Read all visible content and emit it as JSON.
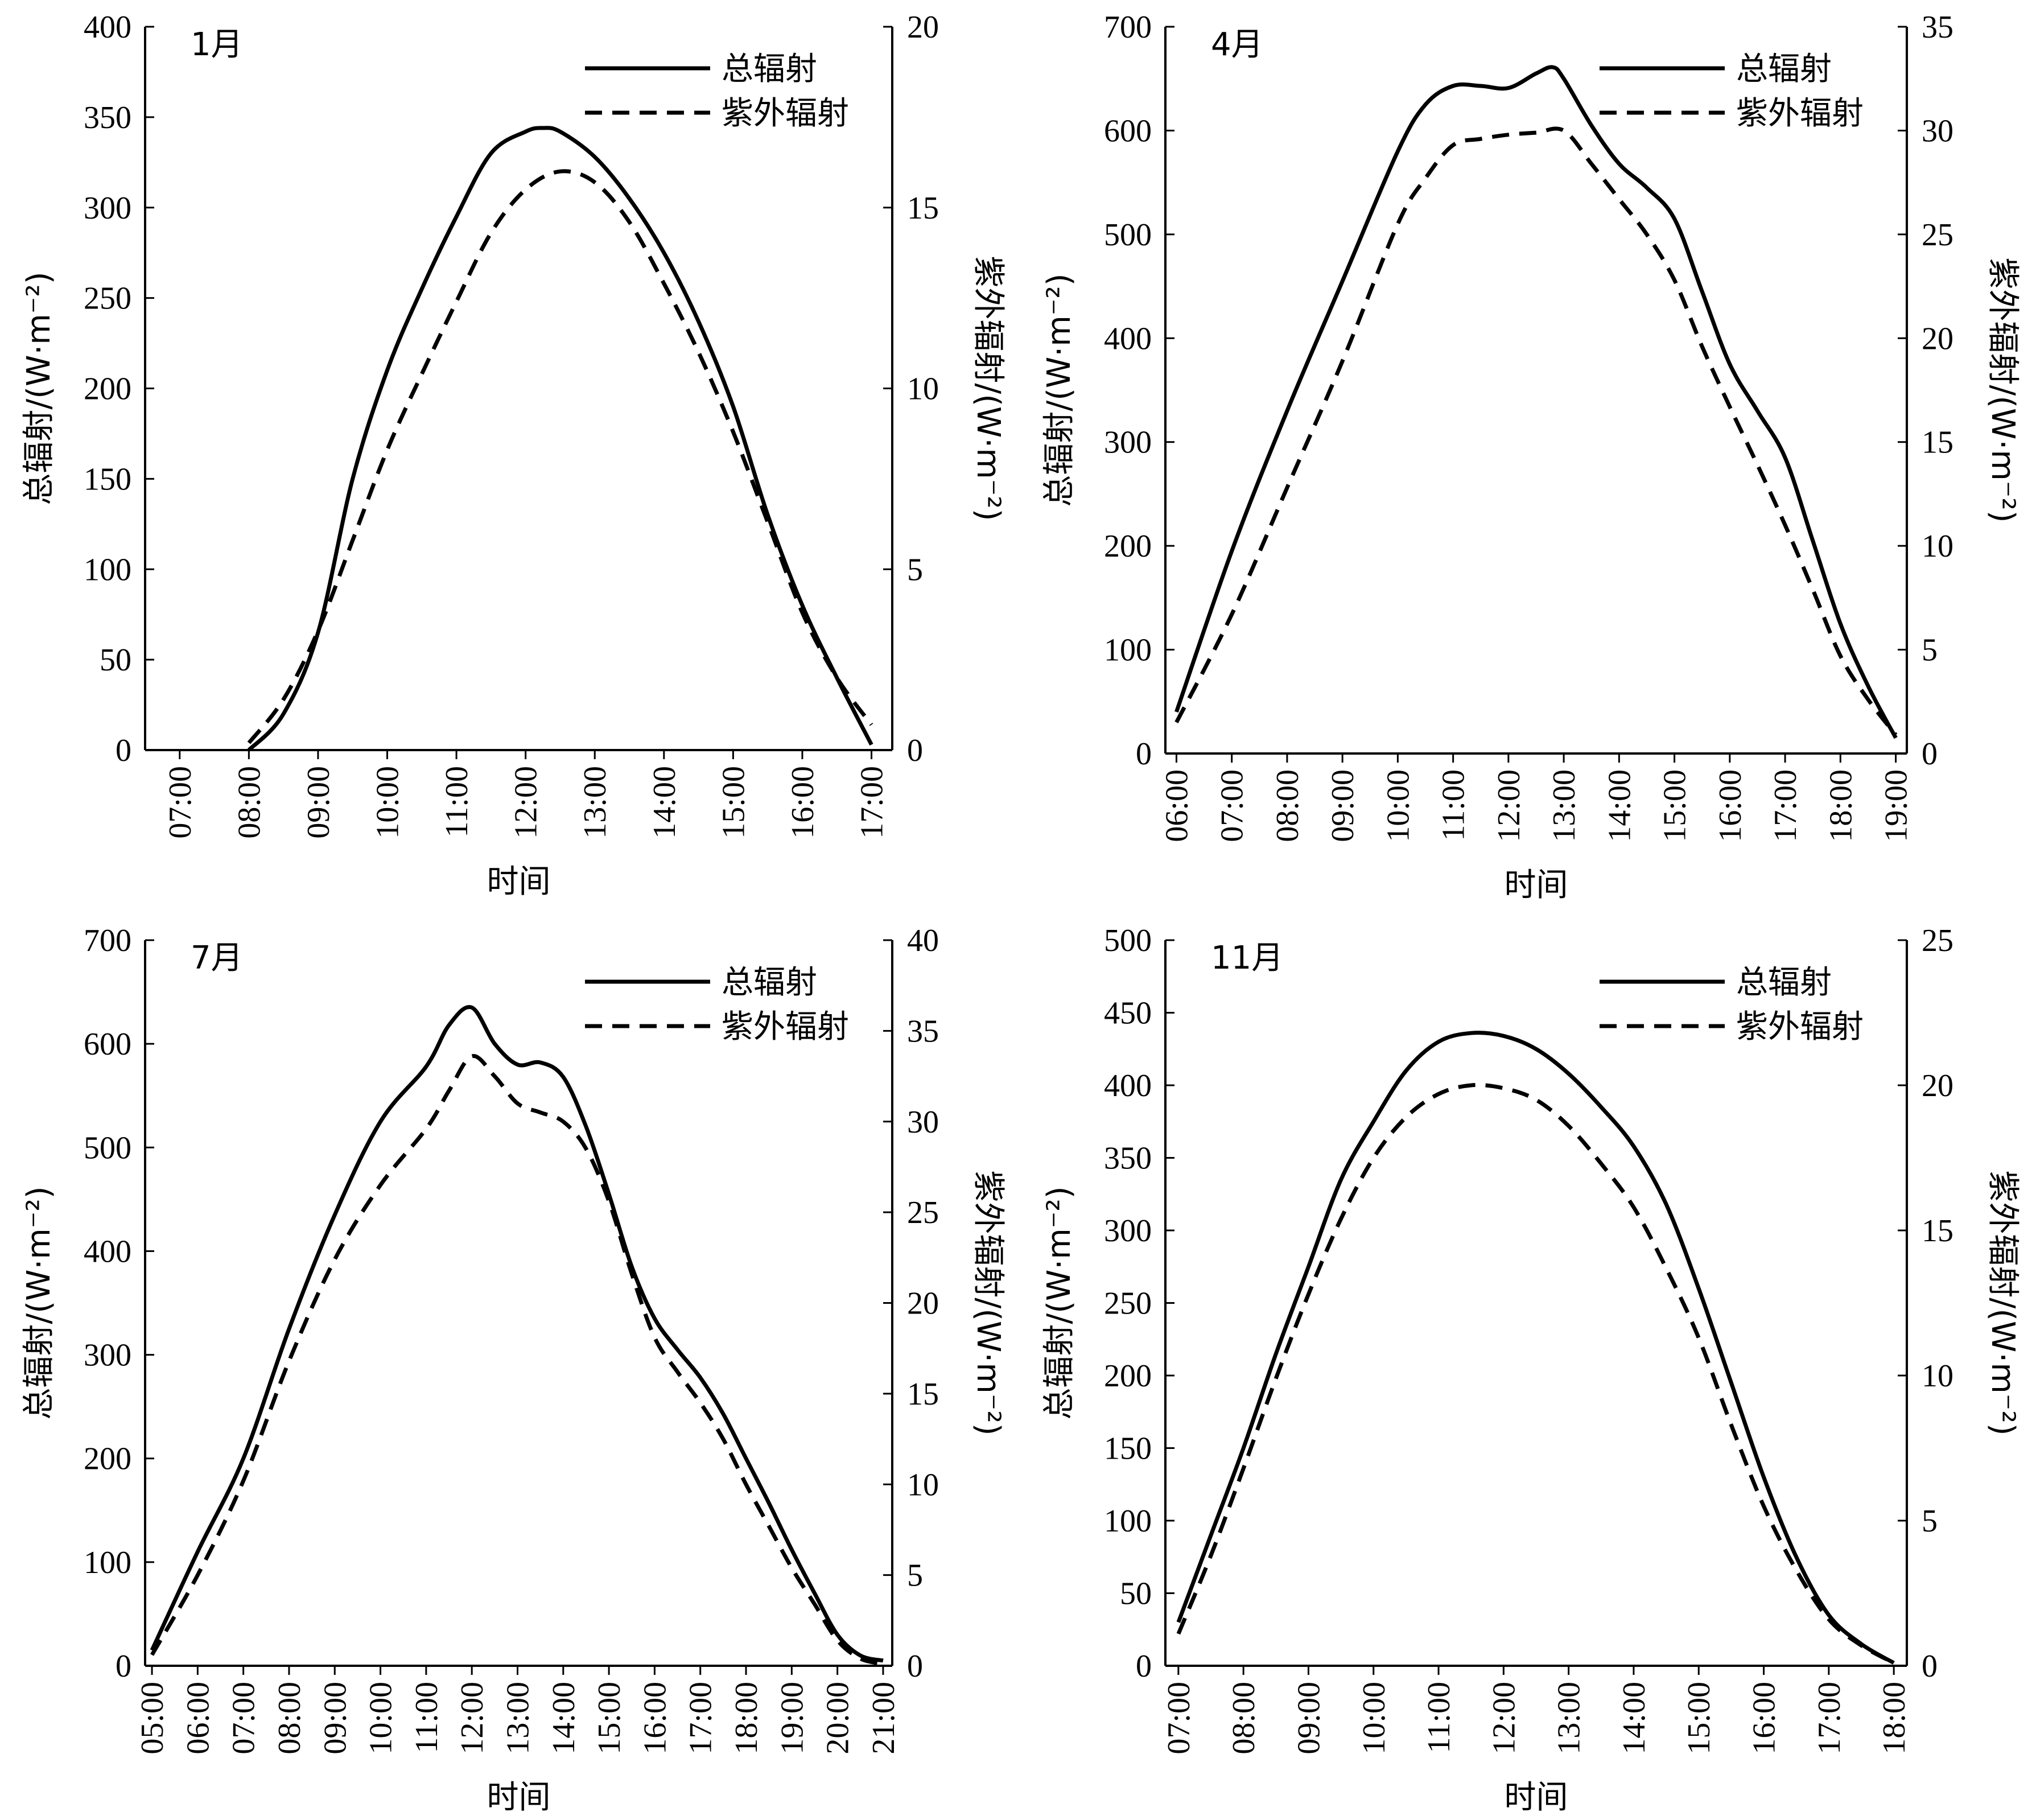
{
  "chart_data": [
    {
      "type": "line",
      "title": "1月",
      "xlabel": "时间",
      "ylabel_left": "总辐射/(W·m⁻²)",
      "ylabel_right": "紫外辐射/(W·m⁻²)",
      "categories": [
        "07:00",
        "08:00",
        "09:00",
        "10:00",
        "11:00",
        "12:00",
        "13:00",
        "14:00",
        "15:00",
        "16:00",
        "17:00"
      ],
      "ylim_left": [
        0,
        400
      ],
      "yticks_left": [
        0,
        50,
        100,
        150,
        200,
        250,
        300,
        350,
        400
      ],
      "ylim_right": [
        0,
        20
      ],
      "yticks_right": [
        0,
        5,
        10,
        15,
        20
      ],
      "legend_position": "top-right",
      "series": [
        {
          "name": "总辐射",
          "axis": "left",
          "style": "solid",
          "x": [
            8.0,
            8.5,
            9.0,
            9.5,
            10.0,
            10.5,
            11.0,
            11.5,
            12.0,
            12.25,
            12.5,
            13.0,
            13.5,
            14.0,
            14.5,
            15.0,
            15.5,
            16.0,
            16.5,
            17.0
          ],
          "y": [
            0,
            20,
            65,
            150,
            210,
            255,
            295,
            330,
            342,
            344,
            342,
            328,
            305,
            275,
            237,
            190,
            130,
            80,
            40,
            3
          ]
        },
        {
          "name": "紫外辐射",
          "axis": "right",
          "style": "dashed",
          "x": [
            8.0,
            8.5,
            9.0,
            9.5,
            10.0,
            10.5,
            11.0,
            11.5,
            12.0,
            12.5,
            13.0,
            13.5,
            14.0,
            14.5,
            15.0,
            15.5,
            16.0,
            16.5,
            17.0
          ],
          "y": [
            0.2,
            1.4,
            3.3,
            5.8,
            8.3,
            10.4,
            12.4,
            14.3,
            15.5,
            16.0,
            15.7,
            14.6,
            12.9,
            11.0,
            8.8,
            6.3,
            3.8,
            2.0,
            0.7
          ]
        }
      ]
    },
    {
      "type": "line",
      "title": "4月",
      "xlabel": "时间",
      "ylabel_left": "总辐射/(W·m⁻²)",
      "ylabel_right": "紫外辐射/(W·m⁻²)",
      "categories": [
        "06:00",
        "07:00",
        "08:00",
        "09:00",
        "10:00",
        "11:00",
        "12:00",
        "13:00",
        "14:00",
        "15:00",
        "16:00",
        "17:00",
        "18:00",
        "19:00"
      ],
      "ylim_left": [
        0,
        700
      ],
      "yticks_left": [
        0,
        100,
        200,
        300,
        400,
        500,
        600,
        700
      ],
      "ylim_right": [
        0,
        35
      ],
      "yticks_right": [
        0,
        5,
        10,
        15,
        20,
        25,
        30,
        35
      ],
      "legend_position": "top-right",
      "series": [
        {
          "name": "总辐射",
          "axis": "left",
          "style": "solid",
          "x": [
            6.0,
            7.0,
            8.0,
            9.0,
            10.0,
            10.5,
            11.0,
            11.5,
            12.0,
            12.5,
            12.8,
            13.0,
            13.5,
            14.0,
            14.5,
            15.0,
            15.5,
            16.0,
            16.5,
            17.0,
            17.5,
            18.0,
            18.5,
            19.0
          ],
          "y": [
            40,
            195,
            330,
            455,
            580,
            625,
            643,
            643,
            641,
            655,
            661,
            650,
            605,
            568,
            545,
            515,
            445,
            375,
            330,
            285,
            205,
            125,
            65,
            15
          ]
        },
        {
          "name": "紫外辐射",
          "axis": "right",
          "style": "dashed",
          "x": [
            6.0,
            7.0,
            8.0,
            9.0,
            10.0,
            10.5,
            11.0,
            11.5,
            12.0,
            12.5,
            13.0,
            13.5,
            14.0,
            14.5,
            15.0,
            15.5,
            16.0,
            16.5,
            17.0,
            17.5,
            18.0,
            18.5,
            19.0
          ],
          "y": [
            1.5,
            6.7,
            12.8,
            18.9,
            25.5,
            27.7,
            29.3,
            29.6,
            29.8,
            29.9,
            30.0,
            28.4,
            26.7,
            25.0,
            22.8,
            19.6,
            16.7,
            13.9,
            11.0,
            7.9,
            4.7,
            2.6,
            0.9
          ]
        }
      ]
    },
    {
      "type": "line",
      "title": "7月",
      "xlabel": "时间",
      "ylabel_left": "总辐射/(W·m⁻²)",
      "ylabel_right": "紫外辐射/(W·m⁻²)",
      "categories": [
        "05:00",
        "06:00",
        "07:00",
        "08:00",
        "09:00",
        "10:00",
        "11:00",
        "12:00",
        "13:00",
        "14:00",
        "15:00",
        "16:00",
        "17:00",
        "18:00",
        "19:00",
        "20:00",
        "21:00"
      ],
      "ylim_left": [
        0,
        700
      ],
      "yticks_left": [
        0,
        100,
        200,
        300,
        400,
        500,
        600,
        700
      ],
      "ylim_right": [
        0,
        40
      ],
      "yticks_right": [
        0,
        5,
        10,
        15,
        20,
        25,
        30,
        35,
        40
      ],
      "legend_position": "top-right",
      "series": [
        {
          "name": "总辐射",
          "axis": "left",
          "style": "solid",
          "x": [
            5.0,
            6.0,
            7.0,
            8.0,
            9.0,
            10.0,
            11.0,
            11.5,
            12.0,
            12.5,
            13.0,
            13.5,
            14.0,
            14.5,
            15.0,
            15.5,
            16.0,
            16.5,
            17.0,
            17.5,
            18.0,
            18.5,
            19.0,
            19.5,
            20.0,
            20.5,
            21.0
          ],
          "y": [
            15,
            110,
            200,
            325,
            435,
            525,
            578,
            618,
            635,
            600,
            580,
            582,
            568,
            520,
            455,
            385,
            335,
            305,
            278,
            243,
            200,
            157,
            112,
            70,
            30,
            10,
            5
          ]
        },
        {
          "name": "紫外辐射",
          "axis": "right",
          "style": "dashed",
          "x": [
            5.0,
            6.0,
            7.0,
            8.0,
            9.0,
            10.0,
            11.0,
            11.5,
            12.0,
            12.5,
            13.0,
            13.5,
            14.0,
            14.5,
            15.0,
            15.5,
            16.0,
            16.5,
            17.0,
            17.5,
            18.0,
            18.5,
            19.0,
            19.5,
            20.0,
            20.5,
            21.0
          ],
          "y": [
            0.6,
            5.0,
            10.2,
            16.8,
            22.4,
            26.5,
            29.6,
            31.7,
            33.6,
            32.5,
            31.0,
            30.5,
            30.0,
            28.5,
            25.6,
            21.6,
            18.1,
            16.2,
            14.5,
            12.5,
            10.0,
            7.7,
            5.4,
            3.4,
            1.4,
            0.4,
            0.1
          ]
        }
      ]
    },
    {
      "type": "line",
      "title": "11月",
      "xlabel": "时间",
      "ylabel_left": "总辐射/(W·m⁻²)",
      "ylabel_right": "紫外辐射/(W·m⁻²)",
      "categories": [
        "07:00",
        "08:00",
        "09:00",
        "10:00",
        "11:00",
        "12:00",
        "13:00",
        "14:00",
        "15:00",
        "16:00",
        "17:00",
        "18:00"
      ],
      "ylim_left": [
        0,
        500
      ],
      "yticks_left": [
        0,
        50,
        100,
        150,
        200,
        250,
        300,
        350,
        400,
        450,
        500
      ],
      "ylim_right": [
        0,
        25
      ],
      "yticks_right": [
        0,
        5,
        10,
        15,
        20,
        25
      ],
      "legend_position": "top-right",
      "series": [
        {
          "name": "总辐射",
          "axis": "left",
          "style": "solid",
          "x": [
            7.0,
            7.5,
            8.0,
            8.5,
            9.0,
            9.5,
            10.0,
            10.5,
            11.0,
            11.5,
            12.0,
            12.5,
            13.0,
            13.5,
            14.0,
            14.5,
            15.0,
            15.5,
            16.0,
            16.5,
            17.0,
            17.5,
            18.0
          ],
          "y": [
            30,
            90,
            150,
            215,
            275,
            335,
            375,
            410,
            430,
            436,
            434,
            425,
            408,
            385,
            358,
            318,
            260,
            195,
            130,
            75,
            35,
            15,
            2
          ]
        },
        {
          "name": "紫外辐射",
          "axis": "right",
          "style": "dashed",
          "x": [
            7.0,
            7.5,
            8.0,
            8.5,
            9.0,
            9.5,
            10.0,
            10.5,
            11.0,
            11.5,
            12.0,
            12.5,
            13.0,
            13.5,
            14.0,
            14.5,
            15.0,
            15.5,
            16.0,
            16.5,
            17.0,
            17.5,
            18.0
          ],
          "y": [
            1.1,
            3.8,
            6.8,
            9.9,
            12.8,
            15.4,
            17.5,
            18.9,
            19.7,
            20.0,
            19.9,
            19.5,
            18.6,
            17.3,
            15.8,
            13.7,
            11.3,
            8.3,
            5.5,
            3.3,
            1.6,
            0.7,
            0.1
          ]
        }
      ]
    }
  ]
}
